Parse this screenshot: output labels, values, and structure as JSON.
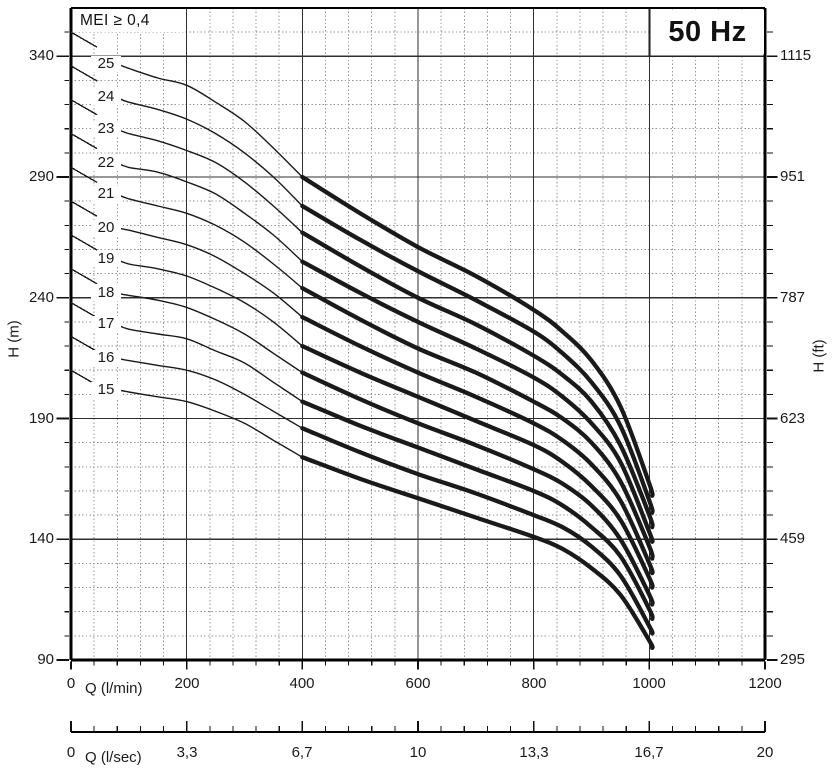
{
  "mei_badge": "MEI ≥ 0,4",
  "frequency_badge": "50 Hz",
  "chart_data": {
    "type": "line",
    "title": "",
    "x_axis": {
      "label": "Q (l/min)",
      "range": [
        0,
        1200
      ],
      "major_ticks": [
        0,
        200,
        400,
        600,
        800,
        1000,
        1200
      ],
      "minor_step": 40
    },
    "x_axis_secondary": {
      "label": "Q (l/sec)",
      "range": [
        0,
        20
      ],
      "tick_labels": [
        "0",
        "3,3",
        "6,7",
        "10",
        "13,3",
        "16,7",
        "20"
      ]
    },
    "y_axis_left": {
      "label": "H (m)",
      "range": [
        90,
        360
      ],
      "major_ticks": [
        340,
        290,
        240,
        190,
        140,
        90
      ],
      "minor_step": 10
    },
    "y_axis_right": {
      "label": "H (ft)",
      "tick_labels": [
        "1115",
        "951",
        "787",
        "623",
        "459",
        "295"
      ]
    },
    "grid": {
      "major": "solid",
      "minor": "dotted"
    },
    "bold_segment_q_range": [
      400,
      1005
    ],
    "q_points": [
      0,
      78,
      100,
      150,
      200,
      250,
      300,
      350,
      400,
      500,
      600,
      700,
      800,
      850,
      900,
      950,
      1000,
      1005
    ],
    "series": [
      {
        "name": "15",
        "values": [
          210,
          202,
          201,
          199,
          197,
          193,
          188,
          181,
          174,
          165,
          157,
          149,
          141,
          136,
          128,
          117,
          98,
          95
        ]
      },
      {
        "name": "16",
        "values": [
          224,
          215,
          214,
          212,
          210,
          206,
          200,
          193,
          186,
          176,
          167,
          159,
          150,
          145,
          137,
          125,
          104,
          101
        ]
      },
      {
        "name": "17",
        "values": [
          238,
          229,
          227,
          225,
          223,
          218,
          213,
          205,
          197,
          187,
          178,
          169,
          160,
          154,
          145,
          133,
          111,
          107
        ]
      },
      {
        "name": "18",
        "values": [
          252,
          242,
          241,
          239,
          236,
          231,
          225,
          217,
          209,
          198,
          188,
          179,
          169,
          163,
          154,
          140,
          117,
          113
        ]
      },
      {
        "name": "19",
        "values": [
          266,
          256,
          254,
          252,
          249,
          244,
          238,
          230,
          220,
          209,
          199,
          189,
          179,
          172,
          162,
          148,
          124,
          120
        ]
      },
      {
        "name": "20",
        "values": [
          280,
          269,
          268,
          265,
          262,
          257,
          250,
          242,
          232,
          220,
          209,
          199,
          188,
          181,
          171,
          156,
          130,
          126
        ]
      },
      {
        "name": "21",
        "values": [
          294,
          283,
          281,
          278,
          275,
          270,
          263,
          254,
          244,
          231,
          219,
          209,
          197,
          190,
          180,
          164,
          137,
          132
        ]
      },
      {
        "name": "22",
        "values": [
          308,
          296,
          294,
          292,
          288,
          283,
          275,
          266,
          255,
          242,
          230,
          219,
          207,
          199,
          188,
          172,
          143,
          139
        ]
      },
      {
        "name": "23",
        "values": [
          322,
          310,
          308,
          305,
          301,
          296,
          288,
          278,
          267,
          253,
          240,
          229,
          216,
          208,
          197,
          179,
          150,
          145
        ]
      },
      {
        "name": "24",
        "values": [
          336,
          323,
          321,
          318,
          314,
          308,
          300,
          290,
          278,
          264,
          251,
          239,
          226,
          217,
          205,
          187,
          156,
          151
        ]
      },
      {
        "name": "25",
        "values": [
          350,
          337,
          335,
          331,
          328,
          321,
          313,
          302,
          290,
          275,
          261,
          249,
          235,
          226,
          214,
          195,
          163,
          158
        ]
      }
    ],
    "colors": {
      "curve": "#1a1a1a",
      "grid_major": "#2f2f2f",
      "grid_minor": "#919191",
      "axis": "#111111",
      "text": "#1a1a1a",
      "background": "#ffffff"
    }
  }
}
